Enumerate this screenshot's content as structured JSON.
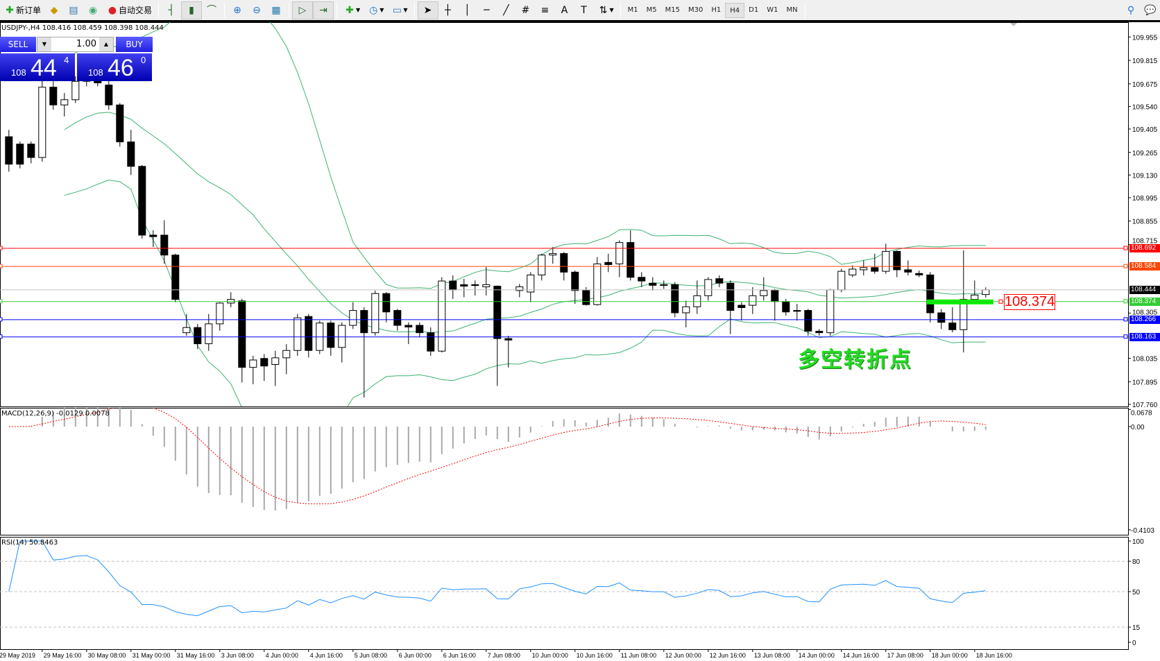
{
  "toolbar": {
    "new_order": "新订单",
    "auto_trading": "自动交易",
    "timeframes": [
      "M1",
      "M5",
      "M15",
      "M30",
      "H1",
      "H4",
      "D1",
      "W1",
      "MN"
    ],
    "active_timeframe": "H4"
  },
  "chart": {
    "symbol_line": "USDJPY-,H4  108.416 108.459 108.398 108.444",
    "trade_panel": {
      "sell_label": "SELL",
      "buy_label": "BUY",
      "lot": "1.00",
      "sell_price": {
        "prefix": "108",
        "big": "44",
        "sup": "4"
      },
      "buy_price": {
        "prefix": "108",
        "big": "46",
        "sup": "0"
      }
    },
    "annotation": "多空转折点",
    "highlight_label": "108.374",
    "macd_label": "MACD(12,26,9) -0.0129 0.0078",
    "rsi_label": "RSI(14) 50.8463"
  },
  "chart_data": {
    "type": "candlestick",
    "price_ticks": [
      "109.955",
      "109.815",
      "109.675",
      "109.540",
      "109.405",
      "109.265",
      "109.130",
      "108.995",
      "108.855",
      "108.715",
      "108.305",
      "108.035",
      "107.895",
      "107.760"
    ],
    "price_range": [
      107.76,
      109.955
    ],
    "horizontal_lines": [
      {
        "price": "108.692",
        "color": "#ff0000"
      },
      {
        "price": "108.584",
        "color": "#ff4500"
      },
      {
        "price": "108.444",
        "color": "#000000",
        "line": "#c0c0c0"
      },
      {
        "price": "108.374",
        "color": "#33cc33"
      },
      {
        "price": "108.266",
        "color": "#0000ff"
      },
      {
        "price": "108.163",
        "color": "#0000ff"
      }
    ],
    "time_labels": [
      "29 May 2019",
      "29 May 16:00",
      "30 May 08:00",
      "31 May 00:00",
      "31 May 16:00",
      "3 Jun 08:00",
      "4 Jun 00:00",
      "4 Jun 16:00",
      "5 Jun 08:00",
      "6 Jun 00:00",
      "6 Jun 16:00",
      "7 Jun 08:00",
      "10 Jun 00:00",
      "10 Jun 16:00",
      "11 Jun 08:00",
      "12 Jun 00:00",
      "12 Jun 16:00",
      "13 Jun 08:00",
      "14 Jun 00:00",
      "14 Jun 16:00",
      "17 Jun 08:00",
      "18 Jun 00:00",
      "18 Jun 16:00"
    ],
    "ohlc": [
      [
        109.359,
        109.4,
        109.15,
        109.195
      ],
      [
        109.315,
        109.33,
        109.17,
        109.195
      ],
      [
        109.315,
        109.33,
        109.2,
        109.235
      ],
      [
        109.235,
        109.7,
        109.21,
        109.655
      ],
      [
        109.655,
        109.69,
        109.52,
        109.549
      ],
      [
        109.549,
        109.62,
        109.48,
        109.58
      ],
      [
        109.58,
        109.72,
        109.56,
        109.69
      ],
      [
        109.69,
        109.76,
        109.66,
        109.72
      ],
      [
        109.72,
        109.75,
        109.66,
        109.681
      ],
      [
        109.668,
        109.7,
        109.52,
        109.549
      ],
      [
        109.549,
        109.56,
        109.3,
        109.328
      ],
      [
        109.328,
        109.4,
        109.13,
        109.182
      ],
      [
        109.182,
        109.19,
        108.75,
        108.771
      ],
      [
        108.771,
        108.8,
        108.7,
        108.762
      ],
      [
        108.771,
        108.86,
        108.6,
        108.652
      ],
      [
        108.652,
        108.66,
        108.37,
        108.387
      ],
      [
        108.188,
        108.3,
        108.17,
        108.219
      ],
      [
        108.219,
        108.24,
        108.09,
        108.122
      ],
      [
        108.122,
        108.3,
        108.08,
        108.241
      ],
      [
        108.241,
        108.37,
        108.2,
        108.365
      ],
      [
        108.365,
        108.43,
        108.34,
        108.387
      ],
      [
        108.378,
        108.39,
        107.89,
        107.981
      ],
      [
        107.981,
        108.05,
        107.88,
        108.025
      ],
      [
        108.034,
        108.06,
        107.9,
        107.989
      ],
      [
        107.998,
        108.08,
        107.87,
        108.038
      ],
      [
        108.038,
        108.12,
        107.94,
        108.082
      ],
      [
        108.082,
        108.3,
        108.05,
        108.277
      ],
      [
        108.285,
        108.3,
        108.04,
        108.082
      ],
      [
        108.082,
        108.26,
        108.06,
        108.246
      ],
      [
        108.246,
        108.26,
        108.05,
        108.1
      ],
      [
        108.1,
        108.25,
        108.01,
        108.232
      ],
      [
        108.232,
        108.37,
        108.21,
        108.321
      ],
      [
        108.321,
        108.34,
        107.8,
        108.188
      ],
      [
        108.188,
        108.44,
        108.17,
        108.422
      ],
      [
        108.422,
        108.43,
        108.25,
        108.312
      ],
      [
        108.321,
        108.33,
        108.2,
        108.232
      ],
      [
        108.232,
        108.25,
        108.12,
        108.222
      ],
      [
        108.232,
        108.25,
        108.16,
        108.188
      ],
      [
        108.188,
        108.22,
        108.05,
        108.078
      ],
      [
        108.078,
        108.52,
        108.07,
        108.497
      ],
      [
        108.497,
        108.53,
        108.39,
        108.444
      ],
      [
        108.475,
        108.51,
        108.4,
        108.466
      ],
      [
        108.475,
        108.5,
        108.41,
        108.47
      ],
      [
        108.462,
        108.58,
        108.41,
        108.475
      ],
      [
        108.466,
        108.47,
        107.87,
        108.153
      ],
      [
        108.153,
        108.17,
        107.98,
        108.144
      ],
      [
        108.44,
        108.48,
        108.4,
        108.462
      ],
      [
        108.431,
        108.55,
        108.37,
        108.533
      ],
      [
        108.533,
        108.66,
        108.5,
        108.652
      ],
      [
        108.652,
        108.7,
        108.6,
        108.661
      ],
      [
        108.661,
        108.67,
        108.5,
        108.55
      ],
      [
        108.55,
        108.56,
        108.36,
        108.44
      ],
      [
        108.44,
        108.46,
        108.35,
        108.356
      ],
      [
        108.356,
        108.64,
        108.35,
        108.599
      ],
      [
        108.608,
        108.66,
        108.55,
        108.595
      ],
      [
        108.599,
        108.74,
        108.52,
        108.727
      ],
      [
        108.727,
        108.8,
        108.5,
        108.519
      ],
      [
        108.519,
        108.55,
        108.46,
        108.497
      ],
      [
        108.484,
        108.52,
        108.44,
        108.471
      ],
      [
        108.475,
        108.5,
        108.45,
        108.471
      ],
      [
        108.475,
        108.49,
        108.28,
        108.307
      ],
      [
        108.307,
        108.38,
        108.22,
        108.343
      ],
      [
        108.343,
        108.5,
        108.3,
        108.409
      ],
      [
        108.409,
        108.52,
        108.38,
        108.506
      ],
      [
        108.511,
        108.53,
        108.46,
        108.484
      ],
      [
        108.484,
        108.5,
        108.18,
        108.321
      ],
      [
        108.352,
        108.37,
        108.26,
        108.338
      ],
      [
        108.352,
        108.46,
        108.3,
        108.409
      ],
      [
        108.409,
        108.52,
        108.38,
        108.44
      ],
      [
        108.44,
        108.45,
        108.26,
        108.374
      ],
      [
        108.374,
        108.39,
        108.29,
        108.312
      ],
      [
        108.321,
        108.36,
        108.26,
        108.316
      ],
      [
        108.321,
        108.33,
        108.17,
        108.197
      ],
      [
        108.197,
        108.21,
        108.17,
        108.188
      ],
      [
        108.188,
        108.45,
        108.17,
        108.444
      ],
      [
        108.444,
        108.57,
        108.43,
        108.555
      ],
      [
        108.533,
        108.59,
        108.52,
        108.568
      ],
      [
        108.564,
        108.62,
        108.53,
        108.577
      ],
      [
        108.577,
        108.66,
        108.54,
        108.555
      ],
      [
        108.555,
        108.72,
        108.54,
        108.674
      ],
      [
        108.674,
        108.68,
        108.52,
        108.564
      ],
      [
        108.564,
        108.62,
        108.53,
        108.55
      ],
      [
        108.542,
        108.56,
        108.52,
        108.533
      ],
      [
        108.533,
        108.55,
        108.25,
        108.307
      ],
      [
        108.307,
        108.33,
        108.21,
        108.25
      ],
      [
        108.246,
        108.34,
        108.19,
        108.206
      ],
      [
        108.206,
        108.68,
        108.07,
        108.387
      ],
      [
        108.387,
        108.5,
        108.37,
        108.413
      ],
      [
        108.416,
        108.459,
        108.398,
        108.444
      ]
    ],
    "indicators": {
      "bollinger": {
        "period": 20,
        "deviations": 2,
        "color": "#3cb371"
      },
      "macd": {
        "fast": 12,
        "slow": 26,
        "signal": 9,
        "ticks": [
          "0.0678",
          "0.00",
          "-0.4103"
        ],
        "range": [
          -0.4103,
          0.0678
        ]
      },
      "rsi": {
        "period": 14,
        "ticks": [
          "100",
          "80",
          "50",
          "15",
          "0"
        ],
        "levels": [
          80,
          50,
          15
        ]
      }
    },
    "highlight_segment": {
      "price": 108.374,
      "color": "#00ee00"
    }
  }
}
